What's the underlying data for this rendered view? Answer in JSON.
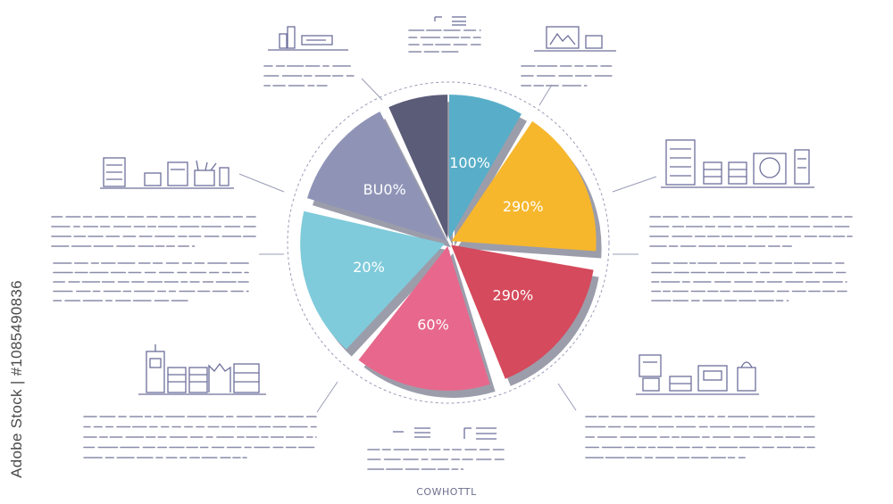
{
  "chart_data": {
    "type": "pie",
    "title": "",
    "slices": [
      {
        "label": "100%",
        "color": "#58aec8"
      },
      {
        "label": "290%",
        "color": "#f6b72d"
      },
      {
        "label": "290%",
        "color": "#d54a5c"
      },
      {
        "label": "60%",
        "color": "#e7688c"
      },
      {
        "label": "20%",
        "color": "#7fcbdb"
      },
      {
        "label": "BU0%",
        "color": "#8f94b7"
      },
      {
        "label": "",
        "color": "#5b5c78"
      }
    ],
    "legend": "none",
    "grid": false
  },
  "watermark": "Adobe Stock | #1085490836",
  "footer_label": "COWHOTTL",
  "colors": {
    "line_art": "#6d6f9a",
    "placeholder_text": "#8a8caa"
  },
  "icons": [
    "building-chart-icon",
    "document-lines-icon",
    "monitor-chart-icon",
    "office-supplies-icon",
    "file-cabinet-icon",
    "city-skyline-icon",
    "list-icon",
    "shopping-icon"
  ]
}
